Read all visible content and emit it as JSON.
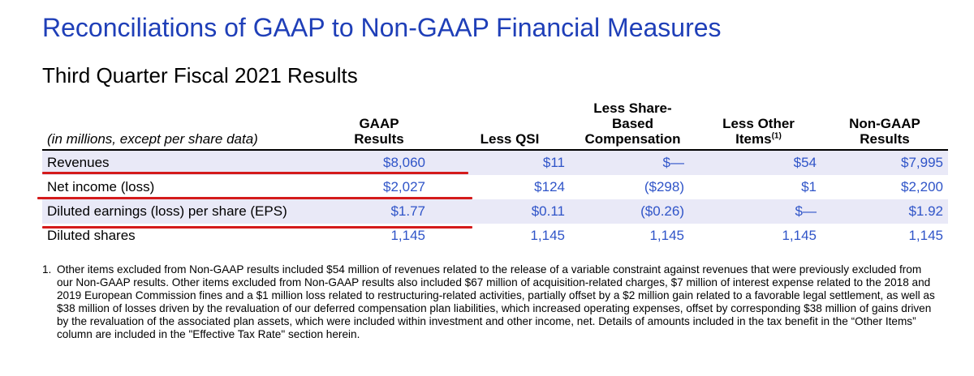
{
  "header": {
    "title": "Reconciliations of GAAP to Non-GAAP Financial Measures",
    "subtitle": "Third Quarter Fiscal 2021 Results"
  },
  "table": {
    "label_header": "(in millions, except per share data)",
    "columns": {
      "gaap": {
        "line1": "GAAP",
        "line2": "Results"
      },
      "qsi": {
        "line1": "Less QSI"
      },
      "sbc": {
        "line1": "Less Share-",
        "line2": "Based",
        "line3": "Compensation"
      },
      "other": {
        "line1": "Less Other",
        "line2": "Items",
        "sup": "(1)"
      },
      "nongaap": {
        "line1": "Non-GAAP",
        "line2": "Results"
      }
    },
    "rows": [
      {
        "label": "Revenues",
        "gaap": "$8,060",
        "qsi": "$11",
        "sbc": "$—",
        "other": "$54",
        "nongaap": "$7,995"
      },
      {
        "label": "Net income (loss)",
        "gaap": "$2,027",
        "qsi": "$124",
        "sbc": "($298)",
        "other": "$1",
        "nongaap": "$2,200"
      },
      {
        "label": "Diluted earnings (loss) per share (EPS)",
        "gaap": "$1.77",
        "qsi": "$0.11",
        "sbc": "($0.26)",
        "other": "$—",
        "nongaap": "$1.92"
      },
      {
        "label": "Diluted shares",
        "gaap": "1,145",
        "qsi": "1,145",
        "sbc": "1,145",
        "other": "1,145",
        "nongaap": "1,145"
      }
    ]
  },
  "footnote": {
    "number": "1.",
    "text": "Other items excluded from Non-GAAP results included $54 million of revenues related to the release of a variable constraint against revenues that were previously excluded from our Non-GAAP results.  Other items excluded from Non-GAAP results also included $67 million of acquisition-related charges, $7 million of interest expense related to the 2018 and 2019 European Commission fines and a $1 million loss related to restructuring-related activities, partially offset by a $2 million gain related to a favorable legal settlement, as well as $38 million of losses driven by the revaluation of our deferred compensation plan liabilities, which increased operating expenses, offset by corresponding $38 million of gains driven by the revaluation of the associated plan assets, which were included within investment and other income, net.  Details of amounts included in the tax benefit in the “Other Items” column are included in the \"Effective Tax Rate\" section herein."
  },
  "colors": {
    "title": "#1f3fb8",
    "numbers": "#2f54c8",
    "row_shade": "#e9e9f7",
    "annotation_underline": "#d41b1b"
  }
}
